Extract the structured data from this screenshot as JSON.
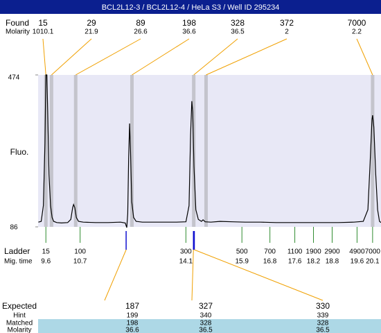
{
  "header": {
    "title": "BCL2L12-3 / BCL2L12-4 / HeLa S3 / Well ID 295234"
  },
  "found": {
    "label": "Found",
    "molarity_label": "Molarity",
    "sizes": [
      15,
      29,
      89,
      198,
      328,
      372,
      7000
    ],
    "molarity": [
      1010.1,
      21.9,
      26.6,
      36.6,
      36.5,
      2,
      2.2
    ]
  },
  "ladder": {
    "label": "Ladder",
    "time_label": "Mig. time",
    "sizes": [
      15,
      100,
      300,
      500,
      700,
      1100,
      1900,
      2900,
      4900,
      7000
    ],
    "times": [
      9.6,
      10.7,
      14.1,
      15.9,
      16.8,
      17.6,
      18.2,
      18.8,
      19.6,
      20.1
    ]
  },
  "expected": {
    "label": "Expected",
    "hint_label": "Hint",
    "matched_label": "Matched",
    "molarity_label": "Molarity",
    "expected": [
      187,
      327,
      330
    ],
    "hint": [
      199,
      340,
      339
    ],
    "matched": [
      198,
      328,
      328
    ],
    "molarity": [
      36.6,
      36.5,
      36.5
    ]
  },
  "chart_data": {
    "type": "line",
    "y_label": "Fluo.",
    "color": "#000000",
    "x": [
      9.36,
      9.45,
      9.52,
      9.57,
      9.6,
      9.63,
      9.66,
      9.7,
      9.75,
      9.8,
      9.85,
      9.95,
      10.1,
      10.3,
      10.4,
      10.46,
      10.49,
      10.53,
      10.58,
      10.65,
      10.8,
      11.2,
      11.6,
      12.0,
      12.15,
      12.2,
      12.23,
      12.26,
      12.29,
      12.32,
      12.36,
      12.42,
      12.5,
      12.7,
      13.2,
      13.8,
      14.1,
      14.2,
      14.25,
      14.29,
      14.32,
      14.36,
      14.42,
      14.5,
      14.6,
      14.65,
      14.72,
      14.9,
      15.2,
      15.6,
      16.0,
      16.5,
      17.0,
      17.5,
      18.0,
      18.5,
      19.0,
      19.5,
      19.8,
      19.95,
      20.02,
      20.08,
      20.1,
      20.14,
      20.2,
      20.26,
      20.32,
      20.37
    ],
    "values": [
      98,
      100,
      140,
      300,
      474,
      474,
      380,
      220,
      140,
      110,
      100,
      97,
      96,
      97,
      105,
      135,
      143,
      135,
      110,
      100,
      98,
      97,
      97,
      98,
      96,
      84,
      120,
      260,
      350,
      280,
      150,
      110,
      100,
      98,
      98,
      98,
      99,
      140,
      320,
      407,
      380,
      240,
      130,
      105,
      100,
      104,
      99,
      98,
      100,
      99,
      98,
      98,
      97,
      97,
      97,
      97,
      97,
      98,
      100,
      130,
      250,
      360,
      371,
      340,
      220,
      130,
      100,
      97
    ],
    "xlim": [
      9.35,
      20.37
    ],
    "ylim": [
      86,
      474
    ],
    "yticks": [
      86,
      474
    ]
  }
}
